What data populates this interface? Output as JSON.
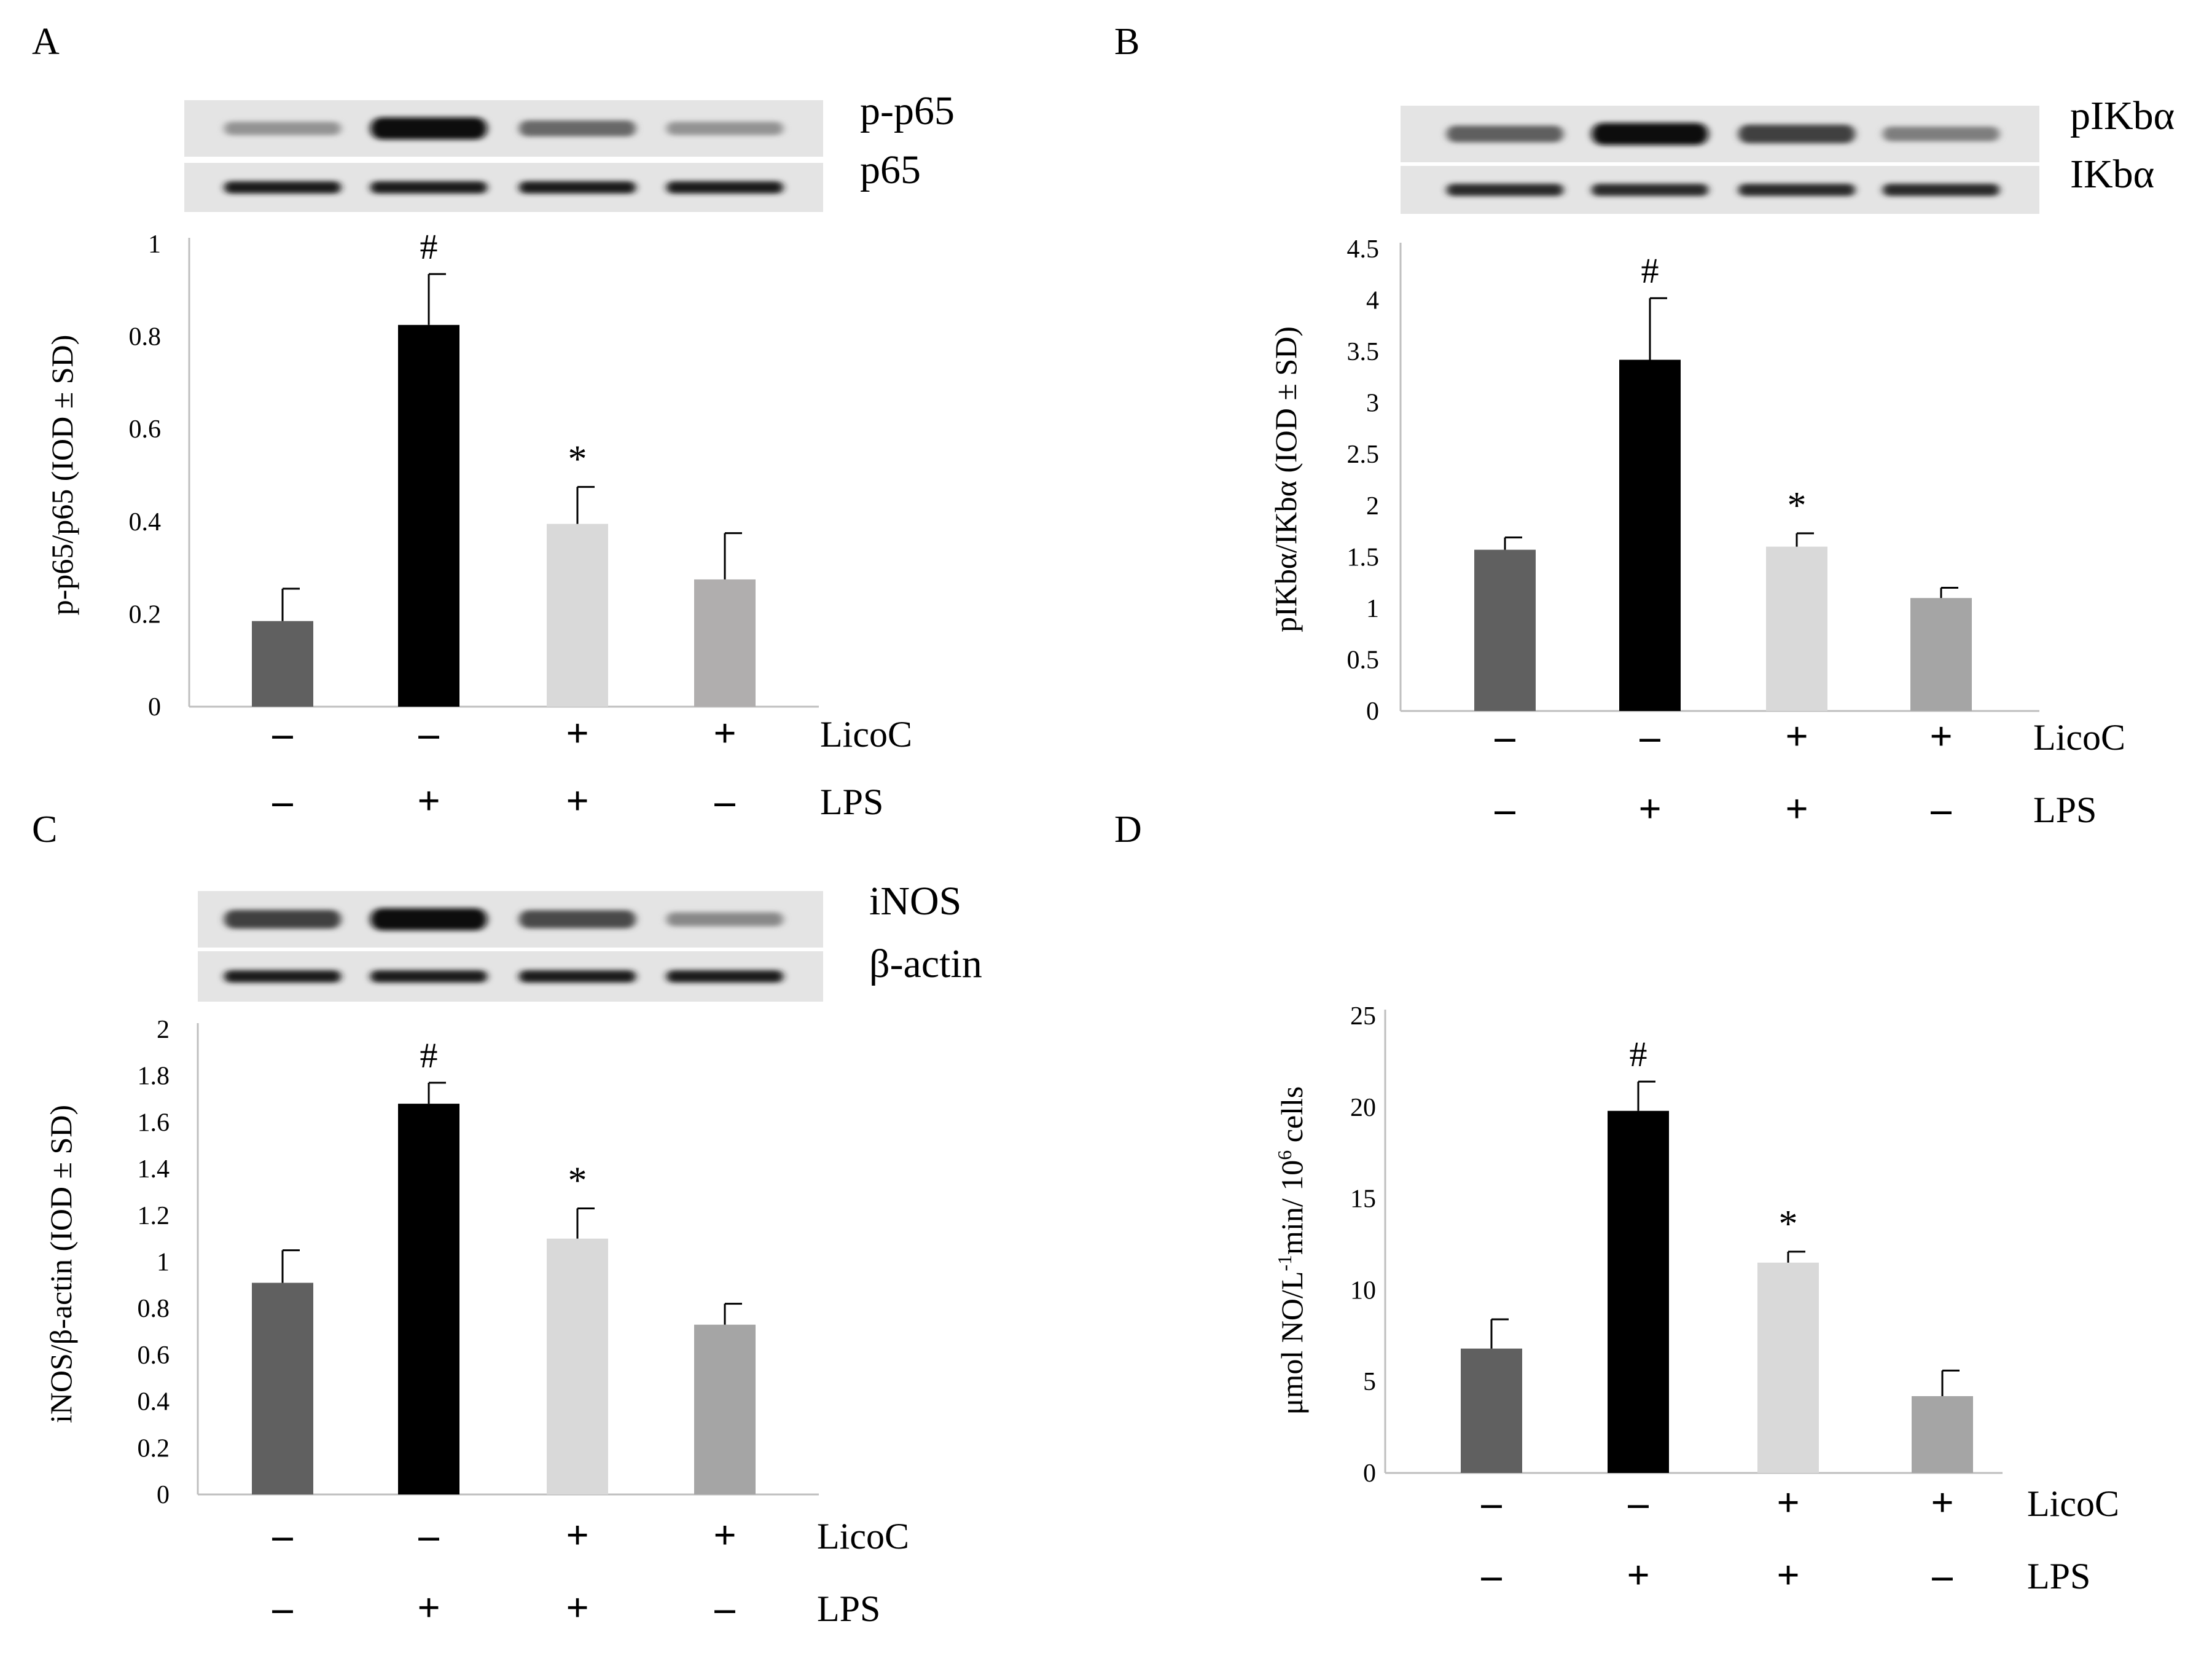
{
  "colors": {
    "bar_dark_gray": "#606060",
    "bar_black": "#000000",
    "bar_light_gray": "#d9d9d9",
    "bar_gray_a": "#b0aeae",
    "bar_gray_b": "#a5a5a5",
    "axis": "#bfbfbf"
  },
  "treatment_labels": {
    "licoc": "LicoC",
    "lps": "LPS",
    "minus": "–",
    "plus": "+"
  },
  "chart_data": [
    {
      "panel": "A",
      "type": "bar",
      "blot_labels": [
        "p-p65",
        "p65"
      ],
      "ylabel": "p-p65/p65 (IOD ± SD)",
      "yticks": [
        "0",
        "0.2",
        "0.4",
        "0.6",
        "0.8",
        "1"
      ],
      "ylim": [
        0,
        1
      ],
      "values": [
        0.185,
        0.825,
        0.395,
        0.275
      ],
      "errors": [
        0.07,
        0.11,
        0.08,
        0.1
      ],
      "markers": [
        "",
        "#",
        "*",
        ""
      ],
      "licoc": [
        "–",
        "–",
        "+",
        "+"
      ],
      "lps": [
        "–",
        "+",
        "+",
        "–"
      ],
      "bar_colors": [
        "#606060",
        "#000000",
        "#d9d9d9",
        "#b0aeae"
      ],
      "band_intensity": [
        [
          0.35,
          1.0,
          0.55,
          0.35
        ],
        [
          0.9,
          0.9,
          0.9,
          0.9
        ]
      ]
    },
    {
      "panel": "B",
      "type": "bar",
      "blot_labels": [
        "pIKbα",
        "IKbα"
      ],
      "ylabel": "pIKbα/IKbα  (IOD ± SD)",
      "yticks": [
        "0",
        "0.5",
        "1",
        "1.5",
        "2",
        "2.5",
        "3",
        "3.5",
        "4",
        "4.5"
      ],
      "ylim": [
        0,
        4.5
      ],
      "values": [
        1.57,
        3.42,
        1.6,
        1.1
      ],
      "errors": [
        0.12,
        0.6,
        0.13,
        0.1
      ],
      "markers": [
        "",
        "#",
        "*",
        ""
      ],
      "licoc": [
        "–",
        "–",
        "+",
        "+"
      ],
      "lps": [
        "–",
        "+",
        "+",
        "–"
      ],
      "bar_colors": [
        "#606060",
        "#000000",
        "#d9d9d9",
        "#a5a5a5"
      ],
      "band_intensity": [
        [
          0.6,
          1.0,
          0.75,
          0.45
        ],
        [
          0.85,
          0.85,
          0.85,
          0.85
        ]
      ]
    },
    {
      "panel": "C",
      "type": "bar",
      "blot_labels": [
        "iNOS",
        "β-actin"
      ],
      "ylabel": "iNOS/β-actin (IOD ± SD)",
      "yticks": [
        "0",
        "0.2",
        "0.4",
        "0.6",
        "0.8",
        "1",
        "1.2",
        "1.4",
        "1.6",
        "1.8",
        "2"
      ],
      "ylim": [
        0,
        2
      ],
      "values": [
        0.91,
        1.68,
        1.1,
        0.73
      ],
      "errors": [
        0.14,
        0.09,
        0.13,
        0.09
      ],
      "markers": [
        "",
        "#",
        "*",
        ""
      ],
      "licoc": [
        "–",
        "–",
        "+",
        "+"
      ],
      "lps": [
        "–",
        "+",
        "+",
        "–"
      ],
      "bar_colors": [
        "#606060",
        "#000000",
        "#d9d9d9",
        "#a5a5a5"
      ],
      "band_intensity": [
        [
          0.75,
          1.0,
          0.7,
          0.4
        ],
        [
          0.9,
          0.9,
          0.9,
          0.9
        ]
      ]
    },
    {
      "panel": "D",
      "type": "bar",
      "blot_labels": [],
      "ylabel_main": "μmol NO/L",
      "ylabel_sup1": "-1",
      "ylabel_mid": "min/ 10",
      "ylabel_sup2": "6",
      "ylabel_end": " cells",
      "yticks": [
        "0",
        "5",
        "10",
        "15",
        "20",
        "25"
      ],
      "ylim": [
        0,
        25
      ],
      "values": [
        6.8,
        19.8,
        11.5,
        4.2
      ],
      "errors": [
        1.6,
        1.6,
        0.6,
        1.4
      ],
      "markers": [
        "",
        "#",
        "*",
        ""
      ],
      "licoc": [
        "–",
        "–",
        "+",
        "+"
      ],
      "lps": [
        "–",
        "+",
        "+",
        "–"
      ],
      "bar_colors": [
        "#606060",
        "#000000",
        "#d9d9d9",
        "#a5a5a5"
      ]
    }
  ]
}
